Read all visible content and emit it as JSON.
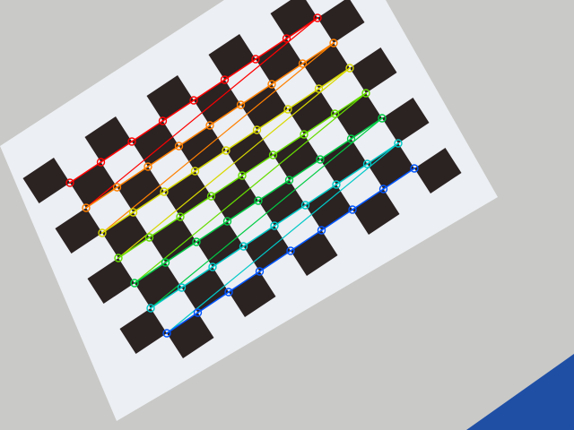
{
  "scene": {
    "description_visible_text": "",
    "background_color": "#c9c9c7",
    "paper_color": "#eceff3",
    "square_color": "#2b2222",
    "table_edge_color": "#1f4fa5",
    "pattern": {
      "type": "checkerboard-calibration",
      "inner_corner_rows": 7,
      "inner_corner_cols": 9
    },
    "detected_row_colors": [
      "#ff0000",
      "#ff8000",
      "#d8d800",
      "#66dd00",
      "#00cc44",
      "#00c8c8",
      "#0055ff",
      "#0000dd"
    ]
  }
}
